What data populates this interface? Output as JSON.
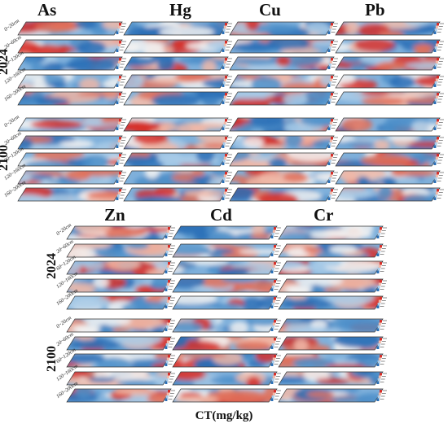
{
  "top_block": {
    "metals": [
      "As",
      "Hg",
      "Cu",
      "Pb"
    ],
    "years": [
      "2024",
      "2100"
    ]
  },
  "bottom_block": {
    "metals": [
      "Zn",
      "Cd",
      "Cr"
    ],
    "years": [
      "2024",
      "2100"
    ]
  },
  "depths": [
    "0~20cm",
    "20~60cm",
    "60~120cm",
    "120~160cm",
    "160~200cm"
  ],
  "unit_label": "CT(mg/kg)",
  "colors": {
    "high": "#d7302a",
    "mid": "#f2f2f2",
    "low": "#2a6fb6",
    "frame": "#333333"
  }
}
